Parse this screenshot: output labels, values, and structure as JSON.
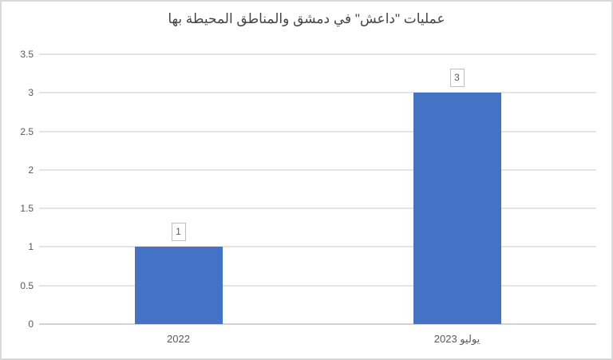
{
  "chart_data": {
    "type": "bar",
    "title": "عمليات \"داعش\" في دمشق والمناطق المحيطة بها",
    "categories": [
      "2022",
      "يوليو 2023"
    ],
    "values": [
      1,
      3
    ],
    "data_labels": [
      "1",
      "3"
    ],
    "series": [
      {
        "name": "عمليات داعش",
        "values": [
          1,
          3
        ]
      }
    ],
    "xlabel": "",
    "ylabel": "",
    "ylim": [
      0,
      3.5
    ],
    "yticks": [
      {
        "value": 0,
        "label": "0"
      },
      {
        "value": 0.5,
        "label": "0.5"
      },
      {
        "value": 1,
        "label": "1"
      },
      {
        "value": 1.5,
        "label": "1.5"
      },
      {
        "value": 2,
        "label": "2"
      },
      {
        "value": 2.5,
        "label": "2.5"
      },
      {
        "value": 3,
        "label": "3"
      },
      {
        "value": 3.5,
        "label": "3.5"
      }
    ],
    "grid": true,
    "legend": "none",
    "direction": "rtl",
    "colors": {
      "bar": "#4472c4",
      "gridline": "#e4e4e4",
      "axis_line": "#d2d2d2",
      "frame_border": "#d9d9d9",
      "tick_text": "#595959",
      "title_text": "#444444",
      "data_label_border": "#bfbfbf",
      "data_label_text": "#595959",
      "background": "#ffffff"
    }
  }
}
